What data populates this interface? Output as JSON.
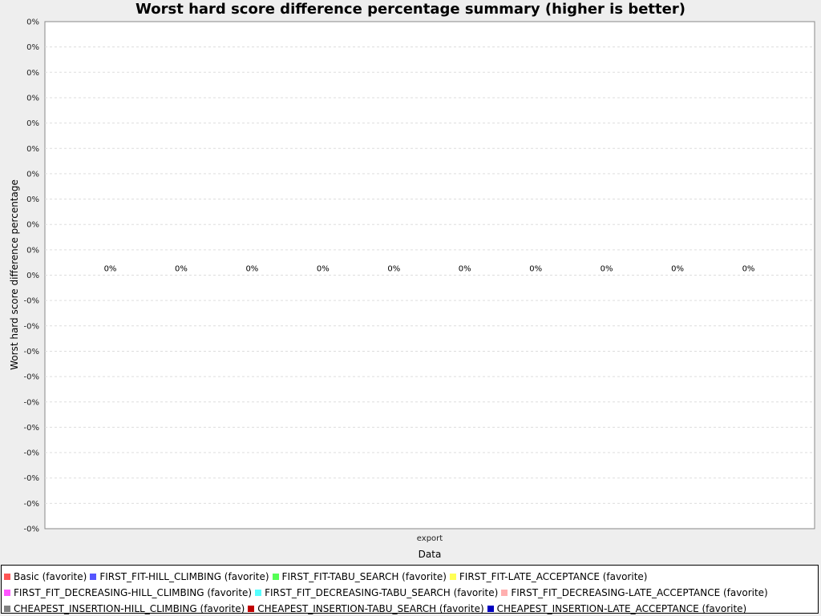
{
  "chart_data": {
    "type": "bar",
    "title": "Worst hard score difference percentage summary (higher is better)",
    "xlabel": "Data",
    "ylabel": "Worst hard score difference percentage",
    "categories": [
      "export"
    ],
    "ylim": [
      -1,
      1
    ],
    "y_tick_labels": [
      "0%",
      "0%",
      "0%",
      "0%",
      "0%",
      "0%",
      "0%",
      "0%",
      "0%",
      "0%",
      "0%",
      "-0%",
      "-0%",
      "-0%",
      "-0%",
      "-0%",
      "-0%",
      "-0%",
      "-0%",
      "-0%",
      "-0%"
    ],
    "grid": true,
    "legend_position": "bottom",
    "series": [
      {
        "name": "Basic (favorite)",
        "color": "#ff5555",
        "values": [
          0
        ],
        "label": "0%"
      },
      {
        "name": "FIRST_FIT-HILL_CLIMBING (favorite)",
        "color": "#5555ff",
        "values": [
          0
        ],
        "label": "0%"
      },
      {
        "name": "FIRST_FIT-TABU_SEARCH (favorite)",
        "color": "#55ff55",
        "values": [
          0
        ],
        "label": "0%"
      },
      {
        "name": "FIRST_FIT-LATE_ACCEPTANCE (favorite)",
        "color": "#ffff55",
        "values": [
          0
        ],
        "label": "0%"
      },
      {
        "name": "FIRST_FIT_DECREASING-HILL_CLIMBING (favorite)",
        "color": "#ff55ff",
        "values": [
          0
        ],
        "label": "0%"
      },
      {
        "name": "FIRST_FIT_DECREASING-TABU_SEARCH (favorite)",
        "color": "#55ffff",
        "values": [
          0
        ],
        "label": "0%"
      },
      {
        "name": "FIRST_FIT_DECREASING-LATE_ACCEPTANCE (favorite)",
        "color": "#ffafaf",
        "values": [
          0
        ],
        "label": "0%"
      },
      {
        "name": "CHEAPEST_INSERTION-HILL_CLIMBING (favorite)",
        "color": "#808080",
        "values": [
          0
        ],
        "label": "0%"
      },
      {
        "name": "CHEAPEST_INSERTION-TABU_SEARCH (favorite)",
        "color": "#c00000",
        "values": [
          0
        ],
        "label": "0%"
      },
      {
        "name": "CHEAPEST_INSERTION-LATE_ACCEPTANCE (favorite)",
        "color": "#0000c0",
        "values": [
          0
        ],
        "label": "0%"
      }
    ],
    "legend_rows": [
      [
        0,
        1,
        2,
        3
      ],
      [
        4,
        5,
        6
      ],
      [
        7,
        8,
        9
      ]
    ]
  }
}
